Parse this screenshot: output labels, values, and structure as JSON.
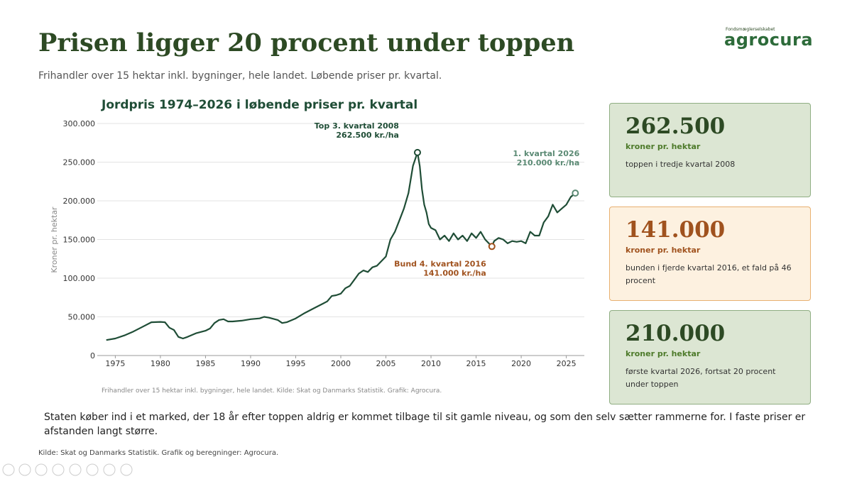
{
  "header": {
    "title": "Prisen ligger 20 procent under toppen",
    "subtitle": "Frihandler over 15 hektar inkl. bygninger, hele landet. Løbende priser pr. kvartal.",
    "logo_small": "Fondsmæglerselskabet",
    "logo": "agrocura"
  },
  "chart_data": {
    "type": "line",
    "title": "Jordpris 1974–2026 i løbende priser pr. kvartal",
    "y_label": "Kroner pr. hektar",
    "note": "Frihandler over 15 hektar inkl. bygninger, hele landet. Kilde: Skat og Danmarks Statistik. Grafik: Agrocura.",
    "xlim": [
      1973,
      2027
    ],
    "xticks": [
      1975,
      1980,
      1985,
      1990,
      1995,
      2000,
      2005,
      2010,
      2015,
      2020,
      2025
    ],
    "ylim": [
      0,
      300000
    ],
    "yticks": [
      0,
      {
        "value": 50000,
        "label": "50.000"
      },
      {
        "value": 100000,
        "label": "100.000"
      },
      {
        "value": 150000,
        "label": "150.000"
      },
      {
        "value": 200000,
        "label": "200.000"
      },
      {
        "value": 250000,
        "label": "250.000"
      },
      {
        "value": 300000,
        "label": "300.000"
      }
    ],
    "grid": true,
    "series": [
      {
        "color": "#1f4d36",
        "x": [
          1974,
          1975,
          1976,
          1977,
          1978,
          1979,
          1980,
          1980.5,
          1981,
          1981.5,
          1982,
          1982.5,
          1983,
          1984,
          1985,
          1985.5,
          1986,
          1986.5,
          1987,
          1987.5,
          1988,
          1989,
          1990,
          1991,
          1991.5,
          1992,
          1993,
          1993.5,
          1994,
          1995,
          1996,
          1997,
          1998,
          1998.5,
          1999,
          1999.5,
          2000,
          2000.5,
          2001,
          2001.5,
          2002,
          2002.5,
          2003,
          2003.5,
          2004,
          2004.5,
          2005,
          2005.5,
          2006,
          2006.5,
          2007,
          2007.5,
          2008,
          2008.5,
          2008.75,
          2009,
          2009.25,
          2009.5,
          2009.75,
          2010,
          2010.5,
          2011,
          2011.5,
          2012,
          2012.5,
          2013,
          2013.5,
          2014,
          2014.5,
          2015,
          2015.5,
          2016,
          2016.75,
          2017,
          2017.5,
          2018,
          2018.5,
          2019,
          2019.5,
          2020,
          2020.5,
          2021,
          2021.5,
          2022,
          2022.5,
          2023,
          2023.5,
          2024,
          2024.5,
          2025,
          2025.5,
          2026
        ],
        "values": [
          20000,
          22000,
          26000,
          31000,
          37000,
          43000,
          43500,
          43000,
          36000,
          33000,
          24000,
          22000,
          24000,
          29000,
          32000,
          35000,
          42000,
          46000,
          47000,
          44000,
          44000,
          45000,
          47000,
          48000,
          50000,
          49000,
          46000,
          42000,
          43000,
          48000,
          55000,
          61000,
          67000,
          70000,
          77000,
          78000,
          80000,
          87000,
          90000,
          98000,
          106000,
          110000,
          108000,
          114000,
          116000,
          122000,
          128000,
          150000,
          160000,
          175000,
          190000,
          210000,
          245000,
          262500,
          245000,
          215000,
          195000,
          185000,
          170000,
          165000,
          162000,
          150000,
          155000,
          148000,
          158000,
          150000,
          155000,
          148000,
          158000,
          152000,
          160000,
          150000,
          141000,
          148000,
          152000,
          150000,
          145000,
          148000,
          147000,
          148000,
          145000,
          160000,
          155000,
          155000,
          172000,
          180000,
          195000,
          185000,
          190000,
          195000,
          205000,
          210000
        ]
      }
    ],
    "annotations": [
      {
        "lines": [
          "Top 3. kvartal 2008",
          "262.500 kr./ha"
        ],
        "x": 2008.5,
        "y": 262500,
        "color": "#1f4d36"
      },
      {
        "lines": [
          "Bund 4. kvartal 2016",
          "141.000 kr./ha"
        ],
        "x": 2016.75,
        "y": 141000,
        "color": "#a0521e"
      },
      {
        "lines": [
          "1. kvartal 2026",
          "210.000 kr./ha"
        ],
        "x": 2026,
        "y": 210000,
        "color": "#5b8a74"
      }
    ]
  },
  "cards": [
    {
      "number": "262.500",
      "unit": "kroner pr. hektar",
      "text": "toppen i tredje kvartal 2008"
    },
    {
      "number": "141.000",
      "unit": "kroner pr. hektar",
      "text": "bunden i fjerde kvartal 2016, et fald på 46 procent"
    },
    {
      "number": "210.000",
      "unit": "kroner pr. hektar",
      "text": "første kvartal 2026, fortsat 20 procent under toppen"
    }
  ],
  "body": "Staten køber ind i et marked, der 18 år efter toppen aldrig er kommet tilbage til sit gamle niveau, og som den selv sætter rammerne for. I faste priser er afstanden langt større.",
  "source": "Kilde: Skat og Danmarks Statistik. Grafik og beregninger: Agrocura."
}
